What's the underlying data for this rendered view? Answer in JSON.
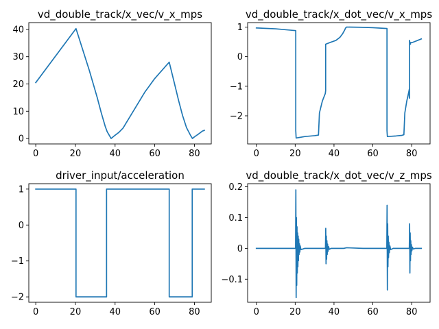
{
  "figure": {
    "background": "#ffffff",
    "line_color": "#1f77b4"
  },
  "chart_data": [
    {
      "type": "line",
      "title": "vd_double_track/x_vec/v_x_mps",
      "xlabel": "",
      "ylabel": "",
      "xlim": [
        -3.5,
        88.5
      ],
      "ylim": [
        -2.0,
        42.5
      ],
      "xticks": [
        0,
        20,
        40,
        60,
        80
      ],
      "yticks": [
        0,
        10,
        20,
        30,
        40
      ],
      "grid": false,
      "series": [
        {
          "x": [
            0,
            20.3,
            27,
            31,
            33,
            35,
            36,
            38,
            40,
            42,
            44,
            50,
            55,
            60,
            67.3,
            70,
            72,
            74,
            76,
            78,
            79,
            80,
            82,
            84,
            85
          ],
          "y": [
            20.5,
            40.3,
            25,
            15,
            9.5,
            4.5,
            2.5,
            0.0,
            1.2,
            2.3,
            3.8,
            11,
            17,
            22,
            28,
            20,
            14,
            8.5,
            4.0,
            1.2,
            0.0,
            0.6,
            1.6,
            2.7,
            3.0
          ]
        }
      ]
    },
    {
      "type": "line",
      "title": "vd_double_track/x_dot_vec/v_x_mps",
      "xlabel": "",
      "ylabel": "",
      "xlim": [
        -4.5,
        89.5
      ],
      "ylim": [
        -2.95,
        1.15
      ],
      "xticks": [
        0,
        20,
        40,
        60,
        80
      ],
      "yticks": [
        -2,
        -1,
        0,
        1
      ],
      "grid": false,
      "series": [
        {
          "x": [
            0,
            10,
            20.3,
            20.3,
            20.5,
            25,
            30,
            32,
            32.5,
            34,
            35.5,
            35.7,
            35.7,
            38,
            41,
            43,
            44.5,
            45.5,
            46,
            46.5,
            55,
            60,
            67.3,
            67.3,
            67.5,
            72,
            75,
            76,
            76.5,
            77.5,
            78,
            78.5,
            78.8,
            78.8,
            78.9,
            78.9,
            79.2,
            79.4,
            79.4,
            79.6,
            80,
            82,
            85
          ],
          "y": [
            0.97,
            0.94,
            0.88,
            -2.5,
            -2.75,
            -2.7,
            -2.67,
            -2.65,
            -1.9,
            -1.5,
            -1.25,
            -1.15,
            0.42,
            0.48,
            0.55,
            0.65,
            0.78,
            0.9,
            0.97,
            1.0,
            0.99,
            0.98,
            0.95,
            -2.5,
            -2.7,
            -2.68,
            -2.66,
            -2.64,
            -1.9,
            -1.5,
            -1.35,
            -1.2,
            -1.1,
            -1.4,
            -1.4,
            0.55,
            0.42,
            0.42,
            0.47,
            0.48,
            0.47,
            0.52,
            0.6
          ]
        }
      ]
    },
    {
      "type": "line",
      "title": "driver_input/acceleration",
      "xlabel": "",
      "ylabel": "",
      "xlim": [
        -3.5,
        88.5
      ],
      "ylim": [
        -2.15,
        1.15
      ],
      "xticks": [
        0,
        20,
        40,
        60,
        80
      ],
      "yticks": [
        -2,
        -1,
        0,
        1
      ],
      "grid": false,
      "series": [
        {
          "x": [
            0,
            20.3,
            20.3,
            35.7,
            35.7,
            67.3,
            67.3,
            78.9,
            78.9,
            85
          ],
          "y": [
            1,
            1,
            -2,
            -2,
            1,
            1,
            -2,
            -2,
            1,
            1
          ]
        }
      ]
    },
    {
      "type": "line",
      "title": "vd_double_track/x_dot_vec/v_z_mps",
      "xlabel": "",
      "ylabel": "",
      "xlim": [
        -4.5,
        89.5
      ],
      "ylim": [
        -0.175,
        0.21
      ],
      "xticks": [
        0,
        20,
        40,
        60,
        80
      ],
      "yticks": [
        -0.1,
        0.0,
        0.1,
        0.2
      ],
      "grid": false,
      "series": [
        {
          "x": [
            0,
            20.2,
            20.35,
            20.5,
            20.65,
            20.8,
            20.95,
            21.1,
            21.25,
            21.4,
            21.55,
            21.7,
            21.85,
            22.0,
            22.2,
            22.4,
            22.6,
            23.0,
            25,
            35.6,
            35.75,
            35.9,
            36.05,
            36.2,
            36.35,
            36.5,
            36.7,
            36.9,
            37.2,
            37.6,
            38.5,
            45,
            46.5,
            55,
            67.2,
            67.35,
            67.5,
            67.65,
            67.8,
            67.95,
            68.1,
            68.3,
            68.5,
            68.8,
            69.2,
            70.5,
            78.8,
            78.95,
            79.1,
            79.25,
            79.4,
            79.55,
            79.7,
            79.9,
            80.1,
            80.4,
            80.8,
            82,
            85
          ],
          "y": [
            0,
            0,
            0.19,
            -0.16,
            0.1,
            -0.12,
            0.07,
            -0.08,
            0.05,
            -0.06,
            0.04,
            -0.04,
            0.03,
            -0.02,
            0.015,
            -0.012,
            0.008,
            -0.004,
            0,
            0,
            0.065,
            -0.05,
            0.04,
            -0.035,
            0.025,
            -0.02,
            0.014,
            -0.01,
            0.006,
            -0.003,
            0,
            0,
            0.002,
            0,
            0,
            0.14,
            -0.135,
            0.08,
            -0.06,
            0.04,
            -0.03,
            0.02,
            -0.014,
            0.008,
            -0.004,
            0,
            0,
            0.08,
            -0.08,
            0.05,
            -0.04,
            0.025,
            -0.02,
            0.012,
            -0.008,
            0.004,
            -0.002,
            0,
            0
          ]
        }
      ]
    }
  ]
}
